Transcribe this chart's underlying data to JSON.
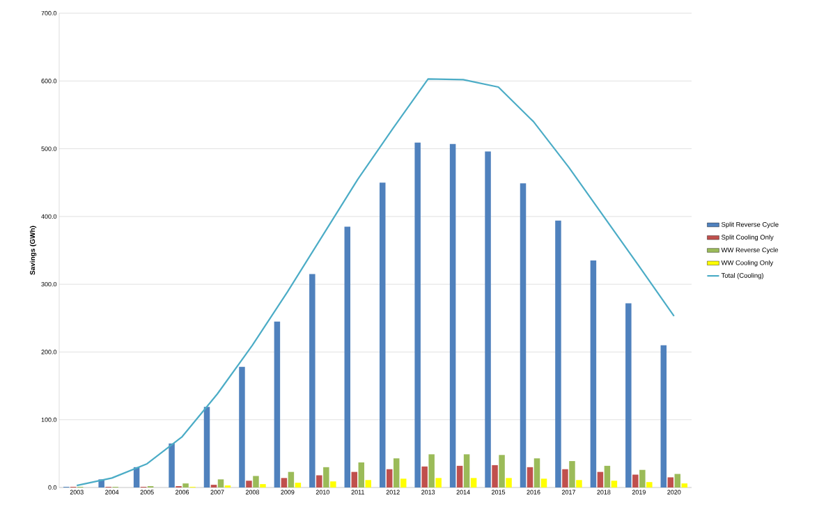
{
  "chart_data": {
    "type": "bar",
    "ylabel": "Savings (GWh)",
    "categories": [
      "2003",
      "2004",
      "2005",
      "2006",
      "2007",
      "2008",
      "2009",
      "2010",
      "2011",
      "2012",
      "2013",
      "2014",
      "2015",
      "2016",
      "2017",
      "2018",
      "2019",
      "2020"
    ],
    "series": [
      {
        "name": "Split Reverse Cycle",
        "color": "#4f81bd",
        "values": [
          1,
          12,
          30,
          65,
          119,
          178,
          245,
          315,
          385,
          450,
          509,
          507,
          496,
          449,
          394,
          335,
          272,
          210
        ]
      },
      {
        "name": "Split Cooling Only",
        "color": "#c0504d",
        "values": [
          1,
          1,
          1,
          2,
          4,
          10,
          14,
          18,
          23,
          27,
          31,
          32,
          33,
          30,
          27,
          23,
          19,
          15
        ]
      },
      {
        "name": "WW Reverse Cycle",
        "color": "#9bbb59",
        "values": [
          1,
          1,
          2,
          6,
          12,
          17,
          23,
          30,
          37,
          43,
          49,
          49,
          48,
          43,
          39,
          32,
          26,
          20
        ]
      },
      {
        "name": "WW Cooling Only",
        "color": "#ffff00",
        "values": [
          0,
          0,
          0,
          1,
          3,
          5,
          7,
          9,
          11,
          13,
          14,
          14,
          14,
          13,
          11,
          10,
          8,
          6
        ]
      },
      {
        "name": "Total (Cooling)",
        "type": "line",
        "color": "#4bacc6",
        "values": [
          3,
          14,
          35,
          75,
          138,
          210,
          289,
          372,
          455,
          530,
          603,
          602,
          591,
          540,
          473,
          400,
          327,
          253
        ]
      }
    ],
    "ylim": [
      0,
      700
    ],
    "yticks": [
      {
        "value": 0,
        "label": "0.0"
      },
      {
        "value": 100,
        "label": "100.0"
      },
      {
        "value": 200,
        "label": "200.0"
      },
      {
        "value": 300,
        "label": "300.0"
      },
      {
        "value": 400,
        "label": "400.0"
      },
      {
        "value": 500,
        "label": "500.0"
      },
      {
        "value": 600,
        "label": "600.0"
      },
      {
        "value": 700,
        "label": "700.0"
      }
    ],
    "grid": "y",
    "legend": "right"
  }
}
